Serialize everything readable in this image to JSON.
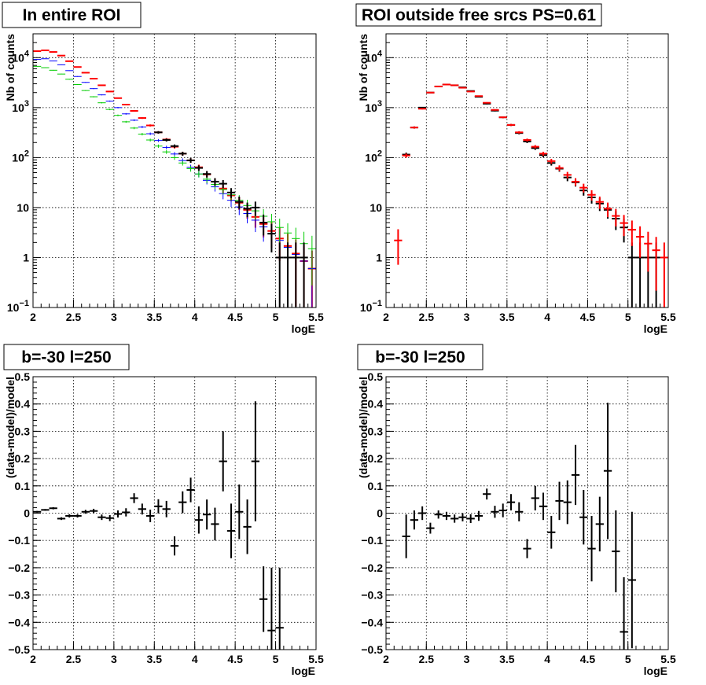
{
  "chart_data": [
    {
      "type": "scatter",
      "title": "In entire ROI",
      "xlabel": "logE",
      "ylabel": "Nb of counts",
      "xlim": [
        2,
        5.5
      ],
      "ylim": [
        0.1,
        30000
      ],
      "yscale": "log",
      "grid": true,
      "x_ticks": [
        "2",
        "2.5",
        "3",
        "3.5",
        "4",
        "4.5",
        "5",
        "5.5"
      ],
      "y_ticks": [
        {
          "value": 0.1,
          "base": "10",
          "exp": "−1"
        },
        {
          "value": 1,
          "base": "1",
          "exp": ""
        },
        {
          "value": 10,
          "base": "10",
          "exp": ""
        },
        {
          "value": 100,
          "base": "10",
          "exp": "2"
        },
        {
          "value": 1000,
          "base": "10",
          "exp": "3"
        },
        {
          "value": 10000,
          "base": "10",
          "exp": "4"
        }
      ],
      "series": [
        {
          "color": "#ff0000",
          "x": [
            2.05,
            2.15,
            2.25,
            2.35,
            2.45,
            2.55,
            2.65,
            2.75,
            2.85,
            2.95,
            3.05,
            3.15,
            3.25,
            3.35,
            3.45,
            3.55,
            3.65,
            3.75,
            3.85,
            3.95,
            4.05,
            4.15,
            4.25,
            4.35,
            4.45,
            4.55,
            4.65,
            4.75,
            4.85,
            4.95,
            5.05,
            5.15,
            5.25,
            5.35,
            5.45
          ],
          "y": [
            13500,
            14000,
            13000,
            11000,
            8500,
            6500,
            5000,
            3800,
            2800,
            2100,
            1550,
            1150,
            860,
            620,
            440,
            320,
            230,
            165,
            120,
            88,
            64,
            46,
            33,
            24,
            17.5,
            12.5,
            9,
            6.5,
            4.7,
            3.4,
            2.4,
            1.7,
            1.2,
            0.85,
            0.6
          ]
        },
        {
          "color": "#0000ff",
          "x": [
            2.05,
            2.15,
            2.25,
            2.35,
            2.45,
            2.55,
            2.65,
            2.75,
            2.85,
            2.95,
            3.05,
            3.15,
            3.25,
            3.35,
            3.45,
            3.55,
            3.65,
            3.75,
            3.85,
            3.95,
            4.05,
            4.15,
            4.25,
            4.35,
            4.45,
            4.55,
            4.65,
            4.75,
            4.85,
            4.95,
            5.05,
            5.15,
            5.25,
            5.35,
            5.45
          ],
          "y": [
            9200,
            9500,
            8600,
            7200,
            5500,
            4200,
            3200,
            2400,
            1800,
            1350,
            1000,
            750,
            560,
            410,
            300,
            220,
            160,
            118,
            87,
            64,
            47,
            35,
            26,
            19,
            14,
            10.3,
            7.6,
            5.6,
            4.1,
            3,
            2.2,
            1.6,
            1.15,
            0.85,
            0.6
          ]
        },
        {
          "color": "#00cc00",
          "x": [
            2.05,
            2.15,
            2.25,
            2.35,
            2.45,
            2.55,
            2.65,
            2.75,
            2.85,
            2.95,
            3.05,
            3.15,
            3.25,
            3.35,
            3.45,
            3.55,
            3.65,
            3.75,
            3.85,
            3.95,
            4.05,
            4.15,
            4.25,
            4.35,
            4.45,
            4.55,
            4.65,
            4.75,
            4.85,
            4.95,
            5.05,
            5.15,
            5.25,
            5.35,
            5.45
          ],
          "y": [
            6700,
            6300,
            5600,
            4700,
            3700,
            2900,
            2200,
            1650,
            1250,
            920,
            700,
            520,
            390,
            295,
            225,
            170,
            130,
            100,
            78,
            60,
            47,
            37,
            29,
            23,
            18,
            14,
            11,
            8.6,
            6.7,
            5.2,
            4,
            3.1,
            2.4,
            1.9,
            1.5
          ]
        },
        {
          "color": "#000000",
          "x": [
            3.55,
            3.65,
            3.75,
            3.85,
            3.95,
            4.05,
            4.15,
            4.25,
            4.35,
            4.45,
            4.55,
            4.65,
            4.75,
            4.85,
            4.95,
            5.05,
            5.15,
            5.25,
            5.35
          ],
          "y": [
            320,
            225,
            170,
            120,
            88,
            62,
            47,
            33,
            30,
            20,
            13,
            9.5,
            10,
            5,
            3,
            1,
            1,
            1,
            1
          ]
        }
      ]
    },
    {
      "type": "scatter",
      "title": "ROI outside free srcs PS=0.61",
      "xlabel": "logE",
      "ylabel": "Nb of counts",
      "xlim": [
        2,
        5.5
      ],
      "ylim": [
        0.1,
        30000
      ],
      "yscale": "log",
      "grid": true,
      "x_ticks": [
        "2",
        "2.5",
        "3",
        "3.5",
        "4",
        "4.5",
        "5",
        "5.5"
      ],
      "y_ticks": [
        {
          "value": 0.1,
          "base": "10",
          "exp": "−1"
        },
        {
          "value": 1,
          "base": "1",
          "exp": ""
        },
        {
          "value": 10,
          "base": "10",
          "exp": ""
        },
        {
          "value": 100,
          "base": "10",
          "exp": "2"
        },
        {
          "value": 1000,
          "base": "10",
          "exp": "3"
        },
        {
          "value": 10000,
          "base": "10",
          "exp": "4"
        }
      ],
      "series": [
        {
          "color": "#000000",
          "x": [
            2.25,
            2.35,
            2.45,
            2.55,
            2.65,
            2.75,
            2.85,
            2.95,
            3.05,
            3.15,
            3.25,
            3.35,
            3.45,
            3.55,
            3.65,
            3.75,
            3.85,
            3.95,
            4.05,
            4.15,
            4.25,
            4.35,
            4.45,
            4.55,
            4.65,
            4.75,
            4.85,
            4.95,
            5.05,
            5.15,
            5.25,
            5.35
          ],
          "y": [
            115,
            400,
            1000,
            2000,
            2650,
            2900,
            2800,
            2550,
            2150,
            1650,
            1200,
            870,
            640,
            450,
            310,
            210,
            155,
            112,
            78,
            60,
            40,
            32,
            22,
            16,
            12,
            9,
            6,
            4,
            1,
            1,
            1,
            1
          ]
        },
        {
          "color": "#ff0000",
          "x": [
            2.15,
            2.25,
            2.35,
            2.45,
            2.55,
            2.65,
            2.75,
            2.85,
            2.95,
            3.05,
            3.15,
            3.25,
            3.35,
            3.45,
            3.55,
            3.65,
            3.75,
            3.85,
            3.95,
            4.05,
            4.15,
            4.25,
            4.35,
            4.45,
            4.55,
            4.65,
            4.75,
            4.85,
            4.95,
            5.05,
            5.15,
            5.25,
            5.35,
            5.45
          ],
          "y": [
            2.2,
            110,
            400,
            950,
            2000,
            2650,
            2900,
            2800,
            2500,
            2100,
            1700,
            1250,
            900,
            640,
            450,
            320,
            225,
            165,
            120,
            85,
            62,
            45,
            33,
            25,
            18,
            13,
            9.5,
            6.8,
            4.9,
            3.6,
            2.6,
            1.9,
            1.4,
            1
          ]
        }
      ]
    },
    {
      "type": "scatter",
      "title": "b=-30 l=250",
      "xlabel": "logE",
      "ylabel": "(data-model)/model",
      "xlim": [
        2,
        5.5
      ],
      "ylim": [
        -0.5,
        0.5
      ],
      "yscale": "linear",
      "grid": true,
      "x_ticks": [
        "2",
        "2.5",
        "3",
        "3.5",
        "4",
        "4.5",
        "5",
        "5.5"
      ],
      "y_ticks": [
        "−0.5",
        "−0.4",
        "−0.3",
        "−0.2",
        "−0.1",
        "0",
        "0.1",
        "0.2",
        "0.3",
        "0.4",
        "0.5"
      ],
      "series": [
        {
          "color": "#000000",
          "x": [
            2.05,
            2.15,
            2.25,
            2.35,
            2.45,
            2.55,
            2.65,
            2.75,
            2.85,
            2.95,
            3.05,
            3.15,
            3.25,
            3.35,
            3.45,
            3.55,
            3.65,
            3.75,
            3.85,
            3.95,
            4.05,
            4.15,
            4.25,
            4.35,
            4.45,
            4.55,
            4.65,
            4.75,
            4.85,
            4.95,
            5.05
          ],
          "y": [
            0.005,
            0.012,
            0.018,
            -0.02,
            -0.01,
            -0.01,
            0.005,
            0.008,
            -0.015,
            -0.018,
            -0.003,
            0.003,
            0.055,
            0.015,
            -0.01,
            0.025,
            0.015,
            -0.12,
            0.04,
            0.085,
            -0.025,
            -0.005,
            -0.04,
            0.19,
            -0.065,
            0.005,
            -0.05,
            0.19,
            -0.315,
            -0.43,
            -0.42
          ],
          "err": [
            0.003,
            0.003,
            0.004,
            0.005,
            0.006,
            0.006,
            0.007,
            0.008,
            0.01,
            0.011,
            0.013,
            0.015,
            0.018,
            0.02,
            0.023,
            0.026,
            0.03,
            0.035,
            0.04,
            0.045,
            0.05,
            0.055,
            0.06,
            0.11,
            0.1,
            0.1,
            0.1,
            0.22,
            0.12,
            0.23,
            0.22
          ]
        }
      ]
    },
    {
      "type": "scatter",
      "title": "b=-30 l=250",
      "xlabel": "logE",
      "ylabel": "(data-model)/model",
      "xlim": [
        2,
        5.5
      ],
      "ylim": [
        -0.5,
        0.5
      ],
      "yscale": "linear",
      "grid": true,
      "x_ticks": [
        "2",
        "2.5",
        "3",
        "3.5",
        "4",
        "4.5",
        "5",
        "5.5"
      ],
      "y_ticks": [
        "−0.5",
        "−0.4",
        "−0.3",
        "−0.2",
        "−0.1",
        "0",
        "0.1",
        "0.2",
        "0.3",
        "0.4",
        "0.5"
      ],
      "series": [
        {
          "color": "#000000",
          "x": [
            2.25,
            2.35,
            2.45,
            2.55,
            2.65,
            2.75,
            2.85,
            2.95,
            3.05,
            3.15,
            3.25,
            3.35,
            3.45,
            3.55,
            3.65,
            3.75,
            3.85,
            3.95,
            4.05,
            4.15,
            4.25,
            4.35,
            4.45,
            4.55,
            4.65,
            4.75,
            4.85,
            4.95,
            5.05
          ],
          "y": [
            -0.085,
            -0.025,
            0.0,
            -0.055,
            -0.005,
            -0.01,
            -0.02,
            -0.015,
            -0.02,
            -0.01,
            0.07,
            0.005,
            0.01,
            0.04,
            0.005,
            -0.13,
            0.055,
            0.025,
            -0.07,
            0.045,
            0.04,
            0.14,
            -0.015,
            -0.13,
            -0.04,
            0.155,
            -0.14,
            -0.435,
            -0.245
          ],
          "err": [
            0.08,
            0.035,
            0.025,
            0.02,
            0.015,
            0.015,
            0.015,
            0.015,
            0.016,
            0.018,
            0.02,
            0.022,
            0.025,
            0.03,
            0.035,
            0.035,
            0.045,
            0.05,
            0.06,
            0.07,
            0.08,
            0.11,
            0.1,
            0.12,
            0.1,
            0.25,
            0.15,
            0.2,
            0.25
          ]
        }
      ]
    }
  ]
}
